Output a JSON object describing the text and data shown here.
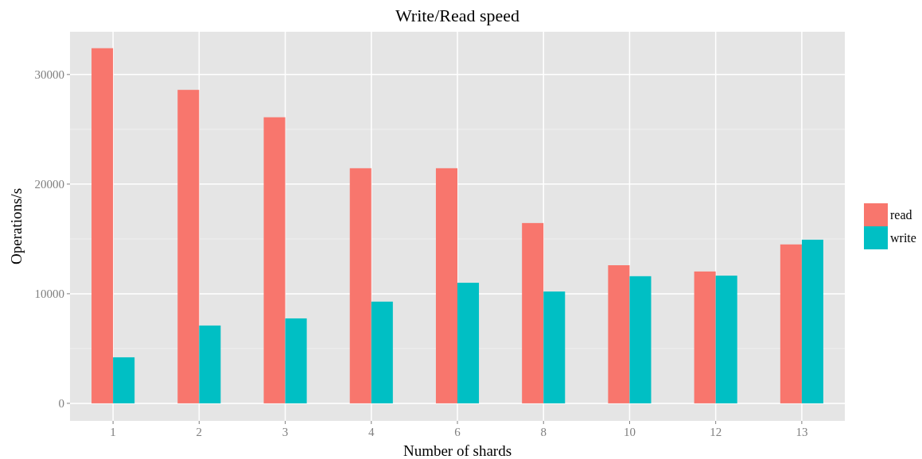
{
  "chart_data": {
    "type": "bar",
    "title": "Write/Read speed",
    "xlabel": "Number of shards",
    "ylabel": "Operations/s",
    "categories": [
      "1",
      "2",
      "3",
      "4",
      "6",
      "8",
      "10",
      "12",
      "13"
    ],
    "series": [
      {
        "name": "read",
        "color": "#f8766d",
        "values": [
          32400,
          28600,
          26100,
          21450,
          21450,
          16450,
          12600,
          12030,
          14500
        ]
      },
      {
        "name": "write",
        "color": "#00bfc4",
        "values": [
          4200,
          7100,
          7750,
          9280,
          11000,
          10200,
          11600,
          11650,
          14930
        ]
      }
    ],
    "ylim": [
      -1600,
      33900
    ],
    "yticks": [
      0,
      10000,
      20000,
      30000
    ],
    "grid": true,
    "legend": "right"
  }
}
